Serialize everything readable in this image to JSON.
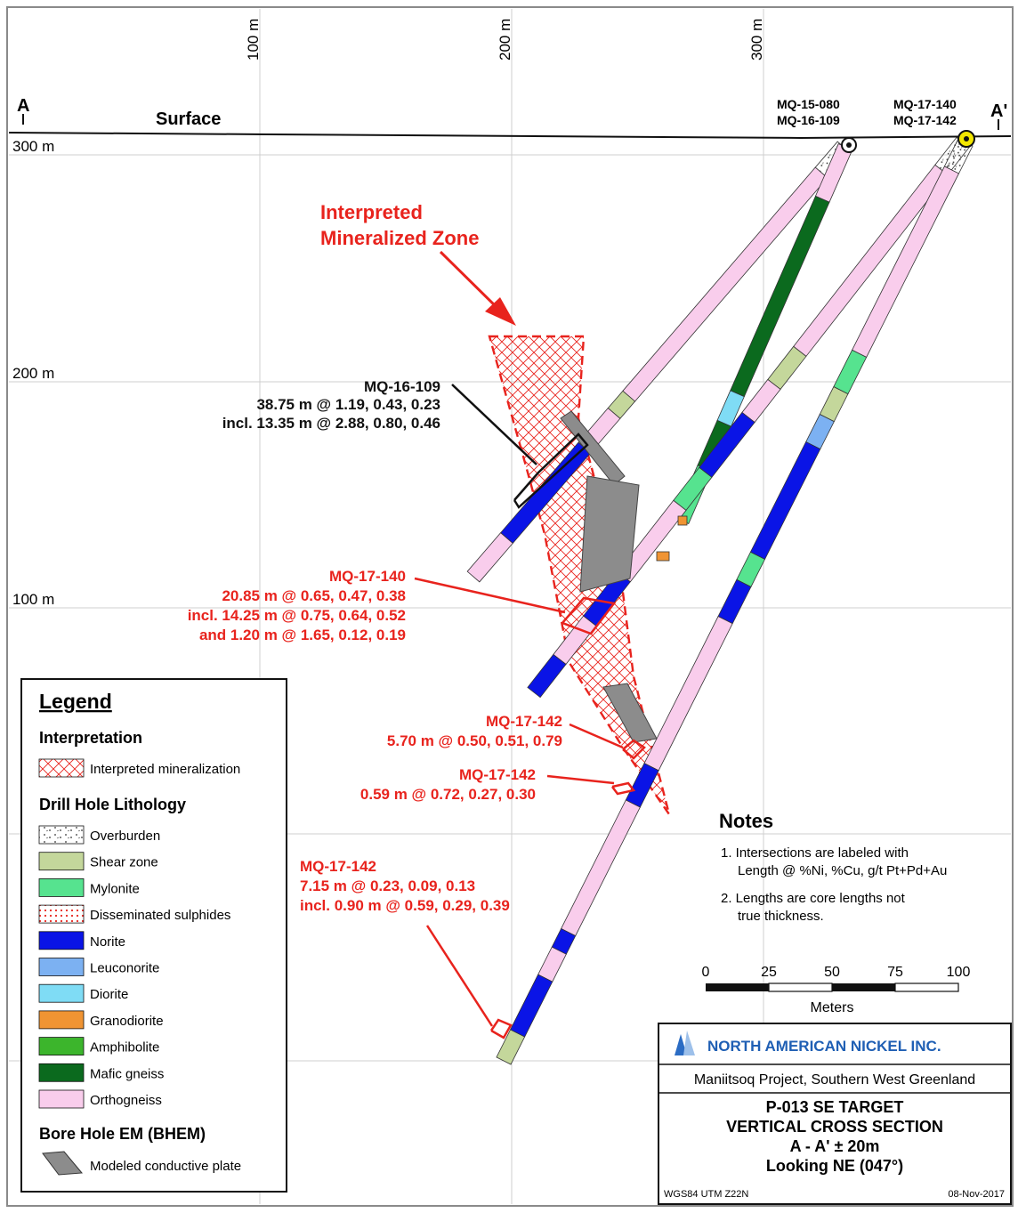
{
  "section": {
    "end_left": "A",
    "end_right": "A'",
    "surface_label": "Surface",
    "easting_ticks": [
      "100 m",
      "200 m",
      "300 m"
    ],
    "elevation_ticks": [
      "300 m",
      "200 m",
      "100 m"
    ]
  },
  "collars": {
    "left": [
      "MQ-15-080",
      "MQ-16-109"
    ],
    "right": [
      "MQ-17-140",
      "MQ-17-142"
    ]
  },
  "zone_label": [
    "Interpreted",
    "Mineralized Zone"
  ],
  "intercepts": [
    {
      "hole": "MQ-16-109",
      "lines": [
        "38.75 m @ 1.19, 0.43, 0.23",
        "incl. 13.35 m @ 2.88, 0.80, 0.46"
      ]
    },
    {
      "hole": "MQ-17-140",
      "lines": [
        "20.85 m @ 0.65, 0.47, 0.38",
        "incl. 14.25 m @ 0.75, 0.64, 0.52",
        "and 1.20 m @ 1.65, 0.12, 0.19"
      ]
    },
    {
      "hole": "MQ-17-142",
      "lines": [
        "5.70 m @ 0.50, 0.51, 0.79"
      ]
    },
    {
      "hole": "MQ-17-142",
      "lines": [
        "0.59 m @ 0.72, 0.27, 0.30"
      ]
    },
    {
      "hole": "MQ-17-142",
      "lines": [
        "7.15 m @ 0.23, 0.09, 0.13",
        "incl. 0.90 m @ 0.59, 0.29, 0.39"
      ]
    }
  ],
  "legend": {
    "title": "Legend",
    "interpretation_heading": "Interpretation",
    "interpretation_item": "Interpreted mineralization",
    "lithology_heading": "Drill Hole Lithology",
    "lithology": [
      {
        "label": "Overburden",
        "color": "#ffffff",
        "pattern": "overburden"
      },
      {
        "label": "Shear zone",
        "color": "#c4d79b",
        "pattern": "solid"
      },
      {
        "label": "Mylonite",
        "color": "#56e38f",
        "pattern": "solid"
      },
      {
        "label": "Disseminated sulphides",
        "color": "#e8231d",
        "pattern": "dots"
      },
      {
        "label": "Norite",
        "color": "#0a14e6",
        "pattern": "solid"
      },
      {
        "label": "Leuconorite",
        "color": "#7cb1f2",
        "pattern": "solid"
      },
      {
        "label": "Diorite",
        "color": "#7fdcf5",
        "pattern": "solid"
      },
      {
        "label": "Granodiorite",
        "color": "#f09433",
        "pattern": "solid"
      },
      {
        "label": "Amphibolite",
        "color": "#3cb52c",
        "pattern": "solid"
      },
      {
        "label": "Mafic gneiss",
        "color": "#0b6a1e",
        "pattern": "solid"
      },
      {
        "label": "Orthogneiss",
        "color": "#f9cdec",
        "pattern": "solid"
      }
    ],
    "bhem_heading": "Bore Hole EM (BHEM)",
    "bhem_item": "Modeled conductive plate"
  },
  "notes": {
    "title": "Notes",
    "items": [
      [
        "1. Intersections are labeled with",
        "Length @ %Ni, %Cu, g/t Pt+Pd+Au"
      ],
      [
        "2. Lengths are core lengths not",
        "true thickness."
      ]
    ]
  },
  "scale_bar": {
    "labels": [
      "0",
      "25",
      "50",
      "75",
      "100"
    ],
    "unit": "Meters"
  },
  "title_block": {
    "company": "NORTH AMERICAN NICKEL INC.",
    "project": "Maniitsoq Project, Southern West Greenland",
    "title_lines": [
      "P-013 SE TARGET",
      "VERTICAL CROSS SECTION",
      "A - A' ± 20m",
      "Looking NE (047°)"
    ],
    "datum": "WGS84 UTM Z22N",
    "date": "08-Nov-2017"
  },
  "colors": {
    "annotation_red": "#e8231d",
    "plate_grey": "#8c8c8c",
    "collar_yellow": "#f2e600"
  }
}
